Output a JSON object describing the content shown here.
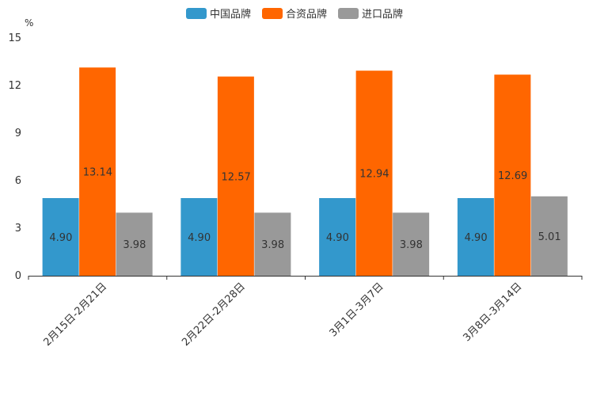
{
  "chart_data": {
    "type": "bar",
    "unit": "%",
    "categories": [
      "2月15日-2月21日",
      "2月22日-2月28日",
      "3月1日-3月7日",
      "3月8日-3月14日"
    ],
    "series": [
      {
        "name": "中国品牌",
        "color": "#3398cc",
        "values": [
          4.9,
          4.9,
          4.9,
          4.9
        ],
        "labels": [
          "4.90",
          "4.90",
          "4.90",
          "4.90"
        ]
      },
      {
        "name": "合资品牌",
        "color": "#ff6600",
        "values": [
          13.14,
          12.57,
          12.94,
          12.69
        ],
        "labels": [
          "13.14",
          "12.57",
          "12.94",
          "12.69"
        ]
      },
      {
        "name": "进口品牌",
        "color": "#999999",
        "values": [
          3.98,
          3.98,
          3.98,
          5.01
        ],
        "labels": [
          "3.98",
          "3.98",
          "3.98",
          "5.01"
        ]
      }
    ],
    "yticks": [
      0,
      3,
      6,
      9,
      12,
      15
    ],
    "ytick_labels": [
      "0",
      "3",
      "6",
      "9",
      "12",
      "15"
    ],
    "ylim": [
      0,
      15
    ],
    "legend_position": "top-center"
  }
}
